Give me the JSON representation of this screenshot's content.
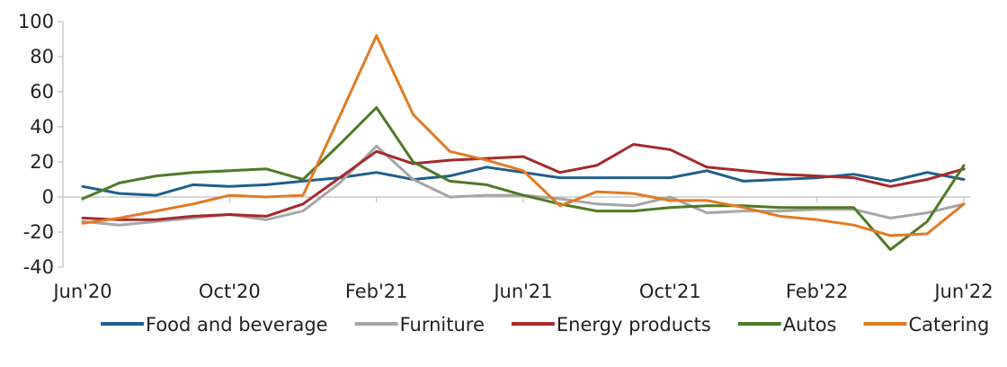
{
  "chart_data": {
    "type": "line",
    "title": "",
    "xlabel": "",
    "ylabel": "",
    "ylim": [
      -40,
      100
    ],
    "yticks": [
      -40,
      -20,
      0,
      20,
      40,
      60,
      80,
      100
    ],
    "ytick_labels": [
      "-40",
      "-20",
      "0",
      "20",
      "40",
      "60",
      "80",
      "100"
    ],
    "grid": false,
    "legend_position": "bottom",
    "x_tick_labels": [
      {
        "index": 0,
        "label": "Jun'20"
      },
      {
        "index": 4,
        "label": "Oct'20"
      },
      {
        "index": 8,
        "label": "Feb'21"
      },
      {
        "index": 12,
        "label": "Jun'21"
      },
      {
        "index": 16,
        "label": "Oct'21"
      },
      {
        "index": 20,
        "label": "Feb'22"
      },
      {
        "index": 24,
        "label": "Jun'22"
      }
    ],
    "x": [
      "Jun'20",
      "Jul'20",
      "Aug'20",
      "Sep'20",
      "Oct'20",
      "Nov'20",
      "Dec'20",
      "Jan'21",
      "Feb'21",
      "Mar'21",
      "Apr'21",
      "May'21",
      "Jun'21",
      "Jul'21",
      "Aug'21",
      "Sep'21",
      "Oct'21",
      "Nov'21",
      "Dec'21",
      "Jan'22",
      "Feb'22",
      "Mar'22",
      "Apr'22",
      "May'22",
      "Jun'22"
    ],
    "series": [
      {
        "name": "Food and beverage",
        "color": "#1f5f8b",
        "values": [
          6,
          2,
          1,
          7,
          6,
          7,
          9,
          11,
          14,
          10,
          12,
          17,
          14,
          11,
          11,
          11,
          11,
          15,
          9,
          10,
          11,
          13,
          9,
          14,
          10
        ]
      },
      {
        "name": "Furniture",
        "color": "#a6a6a6",
        "values": [
          -14,
          -16,
          -14,
          -12,
          -10,
          -13,
          -8,
          8,
          29,
          10,
          0,
          1,
          1,
          -1,
          -4,
          -5,
          0,
          -9,
          -8,
          -8,
          -7,
          -7,
          -12,
          -9,
          -4
        ]
      },
      {
        "name": "Energy products",
        "color": "#a52a2a",
        "values": [
          -12,
          -13,
          -13,
          -11,
          -10,
          -11,
          -4,
          11,
          26,
          19,
          21,
          22,
          23,
          14,
          18,
          30,
          27,
          17,
          15,
          13,
          12,
          11,
          6,
          10,
          16
        ]
      },
      {
        "name": "Autos",
        "color": "#4e7a27",
        "values": [
          -1,
          8,
          12,
          14,
          15,
          16,
          10,
          30,
          51,
          20,
          9,
          7,
          1,
          -4,
          -8,
          -8,
          -6,
          -5,
          -5,
          -6,
          -6,
          -6,
          -30,
          -14,
          18
        ]
      },
      {
        "name": "Catering",
        "color": "#e07b24",
        "values": [
          -15,
          -12,
          -8,
          -4,
          1,
          0,
          1,
          46,
          92,
          47,
          26,
          21,
          15,
          -5,
          3,
          2,
          -2,
          -2,
          -6,
          -11,
          -13,
          -16,
          -22,
          -21,
          -4
        ]
      }
    ]
  }
}
